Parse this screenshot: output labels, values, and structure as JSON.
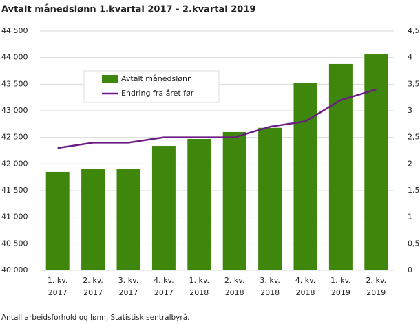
{
  "chart_data": {
    "type": "bar",
    "title": "Avtalt månedslønn 1.kvartal 2017 - 2.kvartal 2019",
    "source": "Antall arbeidsforhold og lønn, Statistisk sentralbyrå.",
    "categories": [
      "1. kv.\n2017",
      "2. kv.\n2017",
      "3. kv.\n2017",
      "4. kv.\n2017",
      "1. kv.\n2018",
      "2. kv.\n2018",
      "3. kv.\n2018",
      "4. kv.\n2018",
      "1. kv.\n2019",
      "2. kv.\n2019"
    ],
    "series": [
      {
        "name": "Avtalt månedslønn",
        "type": "bar",
        "color": "#3f870c",
        "values": [
          41850,
          41910,
          41910,
          42340,
          42470,
          42600,
          42680,
          43530,
          43880,
          44060
        ]
      },
      {
        "name": "Endring fra året før",
        "type": "line",
        "axis": "y2",
        "color": "#6a1b84",
        "values": [
          2.3,
          2.4,
          2.4,
          2.5,
          2.5,
          2.5,
          2.7,
          2.8,
          3.2,
          3.4
        ]
      }
    ],
    "ylim": [
      40000,
      44500
    ],
    "yticks": [
      {
        "value": 40000,
        "label": "40 000"
      },
      {
        "value": 40500,
        "label": "40 500"
      },
      {
        "value": 41000,
        "label": "41 000"
      },
      {
        "value": 41500,
        "label": "41 500"
      },
      {
        "value": 42000,
        "label": "42 000"
      },
      {
        "value": 42500,
        "label": "42 500"
      },
      {
        "value": 43000,
        "label": "43 000"
      },
      {
        "value": 43500,
        "label": "43 500"
      },
      {
        "value": 44000,
        "label": "44 000"
      },
      {
        "value": 44500,
        "label": "44 500"
      }
    ],
    "y2lim": [
      0,
      4.5
    ],
    "y2ticks": [
      0,
      {
        "value": 0.5,
        "label": "0,5"
      },
      1,
      {
        "value": 1.5,
        "label": "1,5"
      },
      2,
      {
        "value": 2.5,
        "label": "2,5"
      },
      3,
      {
        "value": 3.5,
        "label": "3,5"
      },
      4,
      {
        "value": 4.5,
        "label": "4,5"
      }
    ],
    "grid": true,
    "legend": "upper-left"
  }
}
